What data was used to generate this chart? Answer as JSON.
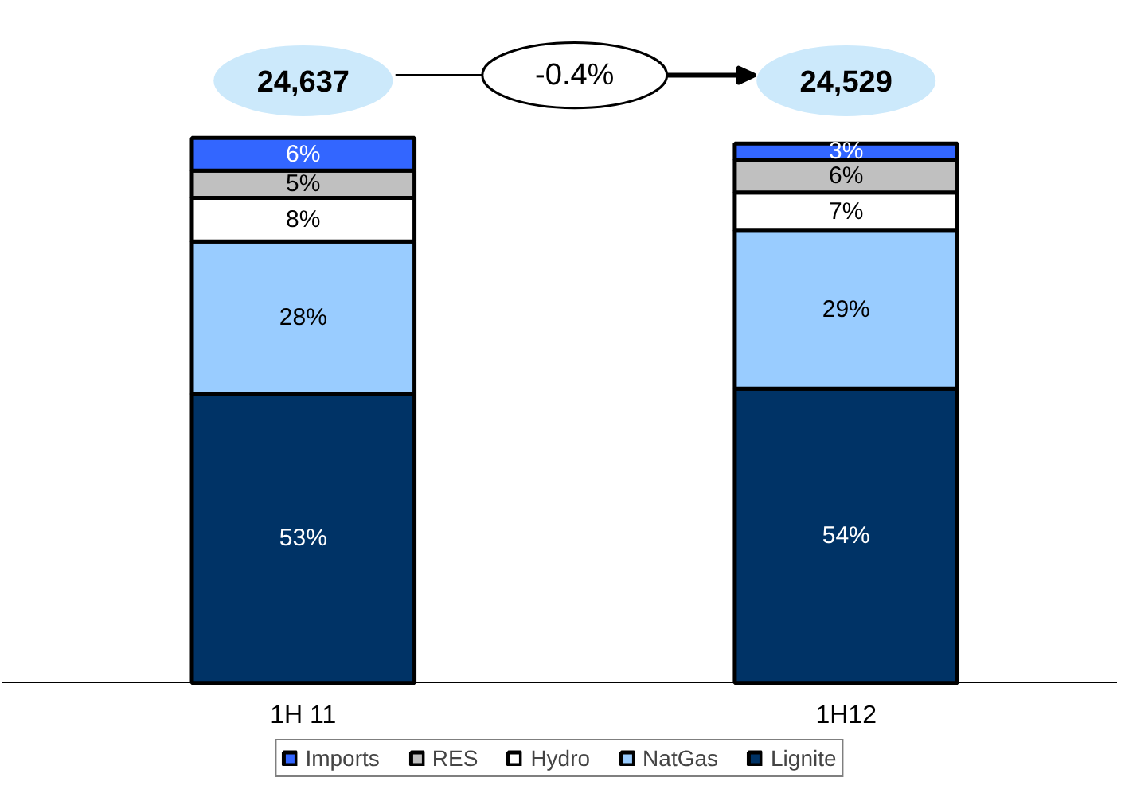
{
  "chart_data": {
    "type": "bar",
    "stacked": true,
    "categories": [
      "1H 11",
      "1H12"
    ],
    "series": [
      {
        "name": "Lignite",
        "color": "#003366",
        "values": [
          53,
          54
        ],
        "value_labels": [
          "53%",
          "54%"
        ]
      },
      {
        "name": "NatGas",
        "color": "#99ccff",
        "values": [
          28,
          29
        ],
        "value_labels": [
          "28%",
          "29%"
        ]
      },
      {
        "name": "Hydro",
        "color": "#ffffff",
        "values": [
          8,
          7
        ],
        "value_labels": [
          "8%",
          "7%"
        ]
      },
      {
        "name": "RES",
        "color": "#c0c0c0",
        "values": [
          5,
          6
        ],
        "value_labels": [
          "5%",
          "6%"
        ]
      },
      {
        "name": "Imports",
        "color": "#3366ff",
        "values": [
          6,
          3
        ],
        "value_labels": [
          "6%",
          "3%"
        ]
      }
    ],
    "tick_labels": "x",
    "annotations": [
      "24,637",
      "-0.4%",
      "24,529"
    ],
    "legend": "bottom"
  }
}
